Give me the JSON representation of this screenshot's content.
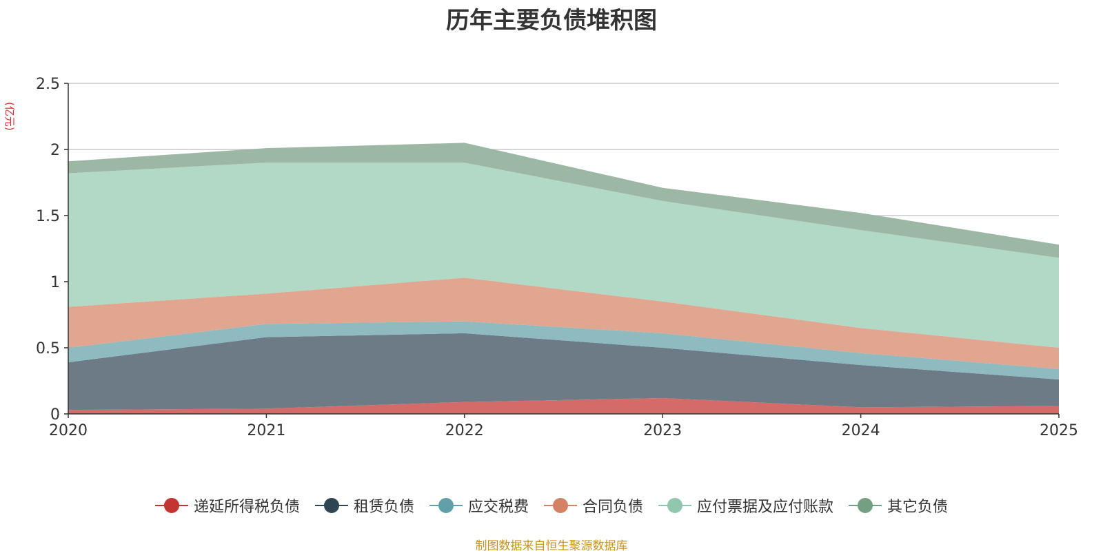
{
  "chart_data": {
    "type": "area",
    "stacked": true,
    "title": "历年主要负债堆积图",
    "unit_label": "(亿元)",
    "x": [
      "2020",
      "2021",
      "2022",
      "2023",
      "2024",
      "2025"
    ],
    "y_ticks": [
      "0",
      "0.5",
      "1",
      "1.5",
      "2",
      "2.5"
    ],
    "ylim": [
      0,
      2.5
    ],
    "grid": true,
    "legend_position": "bottom",
    "series": [
      {
        "name": "递延所得税负债",
        "color": "#c23531",
        "fill": "#d46b68",
        "values": [
          0.03,
          0.04,
          0.09,
          0.12,
          0.05,
          0.06
        ]
      },
      {
        "name": "租赁负债",
        "color": "#2f4554",
        "fill": "#6d7b86",
        "values": [
          0.36,
          0.54,
          0.52,
          0.38,
          0.32,
          0.2
        ]
      },
      {
        "name": "应交税费",
        "color": "#61a0a8",
        "fill": "#8fbac0",
        "values": [
          0.11,
          0.1,
          0.09,
          0.11,
          0.09,
          0.08
        ]
      },
      {
        "name": "合同负债",
        "color": "#d48265",
        "fill": "#e0a690",
        "values": [
          0.31,
          0.23,
          0.33,
          0.24,
          0.19,
          0.16
        ]
      },
      {
        "name": "应付票据及应付账款",
        "color": "#91c7ae",
        "fill": "#b2d8c6",
        "values": [
          1.01,
          0.99,
          0.87,
          0.76,
          0.74,
          0.68
        ]
      },
      {
        "name": "其它负债",
        "color": "#749f83",
        "fill": "#9cb8a5",
        "values": [
          0.09,
          0.11,
          0.15,
          0.1,
          0.13,
          0.1
        ]
      }
    ]
  },
  "source_note": "制图数据来自恒生聚源数据库"
}
